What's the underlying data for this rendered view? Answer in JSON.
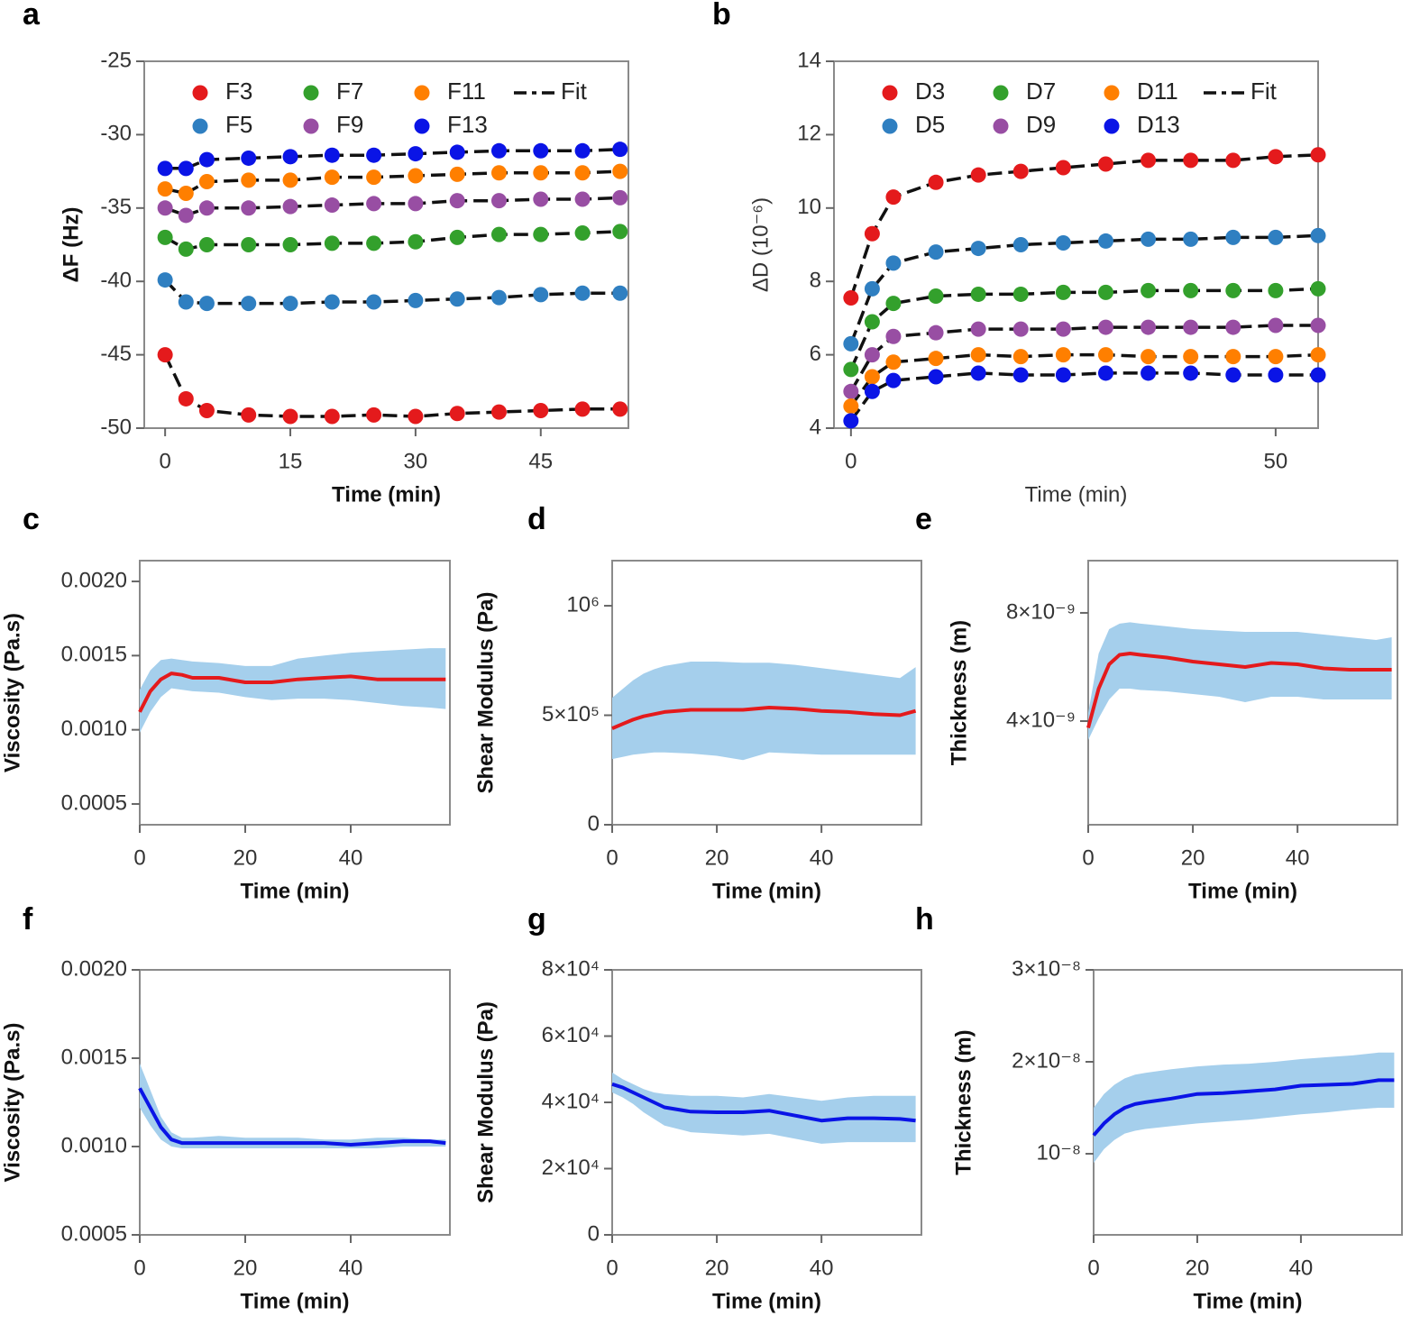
{
  "chart_data": [
    {
      "type": "scatter",
      "panel": "a",
      "xlabel": "Time (min)",
      "ylabel": "ΔF (Hz)",
      "x": [
        0,
        2.5,
        5,
        10,
        15,
        20,
        25,
        30,
        35,
        40,
        45,
        50,
        54.5
      ],
      "xlim": [
        -2.5,
        55.5
      ],
      "xticks": [
        0,
        15,
        30,
        45
      ],
      "ylim": [
        -50,
        -25
      ],
      "yticks": [
        -25,
        -30,
        -35,
        -40,
        -45,
        -50
      ],
      "fit": true,
      "fit_label": "Fit",
      "series": [
        {
          "name": "F3",
          "color": "#e41a1c",
          "values": [
            -45,
            -48,
            -48.8,
            -49.1,
            -49.2,
            -49.2,
            -49.1,
            -49.2,
            -49,
            -48.9,
            -48.8,
            -48.7,
            -48.7
          ]
        },
        {
          "name": "F5",
          "color": "#2f7fc1",
          "values": [
            -39.9,
            -41.4,
            -41.5,
            -41.5,
            -41.5,
            -41.4,
            -41.4,
            -41.3,
            -41.2,
            -41.1,
            -40.9,
            -40.8,
            -40.8
          ]
        },
        {
          "name": "F7",
          "color": "#33a02c",
          "values": [
            -37,
            -37.8,
            -37.5,
            -37.5,
            -37.5,
            -37.4,
            -37.4,
            -37.3,
            -37,
            -36.8,
            -36.8,
            -36.7,
            -36.6
          ]
        },
        {
          "name": "F9",
          "color": "#984ea3",
          "values": [
            -35,
            -35.5,
            -35,
            -35,
            -34.9,
            -34.8,
            -34.7,
            -34.7,
            -34.5,
            -34.5,
            -34.4,
            -34.4,
            -34.3
          ]
        },
        {
          "name": "F11",
          "color": "#ff7f00",
          "values": [
            -33.7,
            -34,
            -33.2,
            -33.1,
            -33.1,
            -32.9,
            -32.9,
            -32.8,
            -32.7,
            -32.6,
            -32.6,
            -32.6,
            -32.5
          ]
        },
        {
          "name": "F13",
          "color": "#0a14e6",
          "values": [
            -32.3,
            -32.3,
            -31.7,
            -31.6,
            -31.5,
            -31.4,
            -31.4,
            -31.3,
            -31.2,
            -31.1,
            -31.1,
            -31.1,
            -31
          ]
        }
      ]
    },
    {
      "type": "scatter",
      "panel": "b",
      "xlabel": "Time (min)",
      "ylabel": "ΔD (10⁻⁶)",
      "x": [
        0,
        2.5,
        5,
        10,
        15,
        20,
        25,
        30,
        35,
        40,
        45,
        50,
        55
      ],
      "xlim": [
        -2,
        55
      ],
      "xticks": [
        0,
        50
      ],
      "ylim": [
        4,
        14
      ],
      "yticks": [
        4,
        6,
        8,
        10,
        12,
        14
      ],
      "fit": true,
      "fit_label": "Fit",
      "series": [
        {
          "name": "D3",
          "color": "#e41a1c",
          "values": [
            7.55,
            9.3,
            10.3,
            10.7,
            10.9,
            11,
            11.1,
            11.2,
            11.3,
            11.3,
            11.3,
            11.4,
            11.45
          ]
        },
        {
          "name": "D5",
          "color": "#2f7fc1",
          "values": [
            6.3,
            7.8,
            8.5,
            8.8,
            8.9,
            9,
            9.05,
            9.1,
            9.15,
            9.15,
            9.2,
            9.2,
            9.25
          ]
        },
        {
          "name": "D7",
          "color": "#33a02c",
          "values": [
            5.6,
            6.9,
            7.4,
            7.6,
            7.65,
            7.65,
            7.7,
            7.7,
            7.75,
            7.75,
            7.75,
            7.75,
            7.8
          ]
        },
        {
          "name": "D9",
          "color": "#984ea3",
          "values": [
            5,
            6,
            6.5,
            6.6,
            6.7,
            6.7,
            6.7,
            6.75,
            6.75,
            6.75,
            6.75,
            6.8,
            6.8
          ]
        },
        {
          "name": "D11",
          "color": "#ff7f00",
          "values": [
            4.6,
            5.4,
            5.8,
            5.9,
            6,
            5.95,
            6,
            6,
            5.95,
            5.95,
            5.95,
            5.95,
            6
          ]
        },
        {
          "name": "D13",
          "color": "#0a14e6",
          "values": [
            4.2,
            5,
            5.3,
            5.4,
            5.5,
            5.45,
            5.45,
            5.5,
            5.5,
            5.5,
            5.45,
            5.45,
            5.45
          ]
        }
      ]
    },
    {
      "type": "line",
      "panel": "c",
      "xlabel": "Time (min)",
      "ylabel": "Viscosity (Pa.s)",
      "x": [
        0,
        2,
        4,
        6,
        8,
        10,
        15,
        20,
        25,
        30,
        35,
        40,
        45,
        50,
        55,
        58
      ],
      "xlim": [
        0,
        58.8
      ],
      "xticks": [
        0,
        20,
        40
      ],
      "ylim": [
        0.00036,
        0.00214
      ],
      "yticks": [
        {
          "value": 0.002,
          "label": "0.0020"
        },
        0.0015,
        {
          "value": 0.001,
          "label": "0.0010"
        },
        0.0005
      ],
      "series": [
        {
          "color": "#e41a1c",
          "values": [
            0.00112,
            0.00126,
            0.00134,
            0.00138,
            0.00137,
            0.00135,
            0.00135,
            0.00132,
            0.00132,
            0.00134,
            0.00135,
            0.00136,
            0.00134,
            0.00134,
            0.00134,
            0.00134
          ],
          "band": {
            "color": "#a5cfec",
            "upper": [
              0.00127,
              0.0014,
              0.00147,
              0.00148,
              0.00147,
              0.00146,
              0.00145,
              0.00143,
              0.00143,
              0.00148,
              0.0015,
              0.00152,
              0.00153,
              0.00154,
              0.00155,
              0.00155
            ],
            "lower": [
              0.00098,
              0.00112,
              0.00122,
              0.00128,
              0.00127,
              0.00126,
              0.00125,
              0.00122,
              0.0012,
              0.00121,
              0.00121,
              0.0012,
              0.00118,
              0.00116,
              0.00115,
              0.00114
            ]
          }
        }
      ]
    },
    {
      "type": "line",
      "panel": "d",
      "xlabel": "Time (min)",
      "ylabel": "Shear Modulus (Pa)",
      "x": [
        0,
        2,
        4,
        6,
        8,
        10,
        15,
        20,
        25,
        30,
        35,
        40,
        45,
        50,
        55,
        58
      ],
      "xlim": [
        0,
        59.1
      ],
      "xticks": [
        0,
        20,
        40
      ],
      "ylim": [
        0,
        1206000
      ],
      "yticks": [
        0,
        {
          "value": 500000,
          "label": "5×10⁵"
        },
        {
          "value": 1000000,
          "label": "10⁶"
        }
      ],
      "series": [
        {
          "color": "#e41a1c",
          "values": [
            440000,
            460000,
            480000,
            495000,
            505000,
            515000,
            525000,
            525000,
            525000,
            535000,
            530000,
            520000,
            515000,
            505000,
            500000,
            520000
          ],
          "band": {
            "color": "#a5cfec",
            "upper": [
              580000,
              620000,
              660000,
              690000,
              710000,
              725000,
              745000,
              745000,
              740000,
              740000,
              730000,
              715000,
              700000,
              685000,
              670000,
              720000
            ],
            "lower": [
              300000,
              310000,
              320000,
              325000,
              330000,
              330000,
              325000,
              315000,
              295000,
              330000,
              325000,
              320000,
              320000,
              320000,
              320000,
              320000
            ]
          }
        }
      ]
    },
    {
      "type": "line",
      "panel": "e",
      "xlabel": "Time (min)",
      "ylabel": "Thickness (m)",
      "x": [
        0,
        2,
        4,
        6,
        8,
        10,
        15,
        20,
        25,
        30,
        35,
        40,
        45,
        50,
        55,
        58
      ],
      "xlim": [
        0,
        59.1
      ],
      "xticks": [
        0,
        20,
        40
      ],
      "ylim": [
        1.7e-10,
        9.93e-09
      ],
      "yticks": [
        {
          "value": 4e-09,
          "label": "4×10⁻⁹"
        },
        {
          "value": 8e-09,
          "label": "8×10⁻⁹"
        }
      ],
      "series": [
        {
          "color": "#e41a1c",
          "values": [
            3.75e-09,
            5.2e-09,
            6.1e-09,
            6.45e-09,
            6.5e-09,
            6.45e-09,
            6.35e-09,
            6.2e-09,
            6.1e-09,
            6e-09,
            6.15e-09,
            6.1e-09,
            5.95e-09,
            5.9e-09,
            5.9e-09,
            5.9e-09
          ],
          "band": {
            "color": "#a5cfec",
            "upper": [
              4.3e-09,
              6.5e-09,
              7.4e-09,
              7.6e-09,
              7.65e-09,
              7.6e-09,
              7.5e-09,
              7.4e-09,
              7.35e-09,
              7.3e-09,
              7.3e-09,
              7.3e-09,
              7.2e-09,
              7.1e-09,
              7e-09,
              7.1e-09
            ],
            "lower": [
              3.3e-09,
              4.1e-09,
              4.8e-09,
              5.2e-09,
              5.2e-09,
              5.15e-09,
              5.1e-09,
              5e-09,
              4.9e-09,
              4.7e-09,
              4.9e-09,
              4.9e-09,
              4.8e-09,
              4.8e-09,
              4.8e-09,
              4.8e-09
            ]
          }
        }
      ]
    },
    {
      "type": "line",
      "panel": "f",
      "xlabel": "Time (min)",
      "ylabel": "Viscosity (Pa.s)",
      "x": [
        0,
        2,
        4,
        6,
        8,
        10,
        15,
        20,
        25,
        30,
        35,
        40,
        45,
        50,
        55,
        58
      ],
      "xlim": [
        0,
        58.8
      ],
      "xticks": [
        0,
        20,
        40
      ],
      "ylim": [
        0.0005,
        0.002
      ],
      "yticks": [
        {
          "value": 0.002,
          "label": "0.0020"
        },
        0.0015,
        {
          "value": 0.001,
          "label": "0.0010"
        },
        0.0005
      ],
      "series": [
        {
          "color": "#0a14e6",
          "values": [
            0.00133,
            0.00122,
            0.00111,
            0.00104,
            0.00102,
            0.00102,
            0.00102,
            0.00102,
            0.00102,
            0.00102,
            0.00102,
            0.00101,
            0.00102,
            0.00103,
            0.00103,
            0.00102
          ],
          "band": {
            "color": "#a5cfec",
            "upper": [
              0.00147,
              0.00132,
              0.00117,
              0.00108,
              0.00105,
              0.00105,
              0.00106,
              0.00105,
              0.00105,
              0.00105,
              0.00104,
              0.00104,
              0.00105,
              0.00105,
              0.00104,
              0.00104
            ],
            "lower": [
              0.00122,
              0.00112,
              0.00104,
              0.001,
              0.00099,
              0.00099,
              0.00099,
              0.00099,
              0.00099,
              0.00099,
              0.00099,
              0.00099,
              0.00099,
              0.001,
              0.001,
              0.001
            ]
          }
        }
      ]
    },
    {
      "type": "line",
      "panel": "g",
      "xlabel": "Time (min)",
      "ylabel": "Shear Modulus (Pa)",
      "x": [
        0,
        2,
        4,
        6,
        8,
        10,
        15,
        20,
        25,
        30,
        35,
        40,
        45,
        50,
        55,
        58
      ],
      "xlim": [
        0,
        59.1
      ],
      "xticks": [
        0,
        20,
        40
      ],
      "ylim": [
        0,
        80000
      ],
      "yticks": [
        0,
        {
          "value": 20000,
          "label": "2×10⁴"
        },
        {
          "value": 40000,
          "label": "4×10⁴"
        },
        {
          "value": 60000,
          "label": "6×10⁴"
        },
        {
          "value": 80000,
          "label": "8×10⁴"
        }
      ],
      "series": [
        {
          "color": "#0a14e6",
          "values": [
            45500,
            44500,
            43000,
            41500,
            40000,
            38500,
            37200,
            37000,
            37000,
            37500,
            36000,
            34500,
            35200,
            35200,
            35000,
            34500
          ],
          "band": {
            "color": "#a5cfec",
            "upper": [
              49000,
              47000,
              45500,
              44000,
              43000,
              42500,
              42000,
              42000,
              41500,
              42500,
              41500,
              40500,
              41500,
              42000,
              42000,
              42000
            ],
            "lower": [
              43000,
              41500,
              39500,
              37000,
              35000,
              33000,
              31000,
              30500,
              30000,
              30500,
              29000,
              27500,
              28000,
              28000,
              28000,
              28000
            ]
          }
        }
      ]
    },
    {
      "type": "line",
      "panel": "h",
      "xlabel": "Time (min)",
      "ylabel": "Thickness (m)",
      "x": [
        0,
        2,
        4,
        6,
        8,
        10,
        15,
        20,
        25,
        30,
        35,
        40,
        45,
        50,
        55,
        58
      ],
      "xlim": [
        0,
        59.5
      ],
      "xticks": [
        0,
        20,
        40
      ],
      "ylim": [
        1.18e-09,
        3e-08
      ],
      "yticks": [
        {
          "value": 3e-08,
          "label": "3×10⁻⁸"
        },
        {
          "value": 2e-08,
          "label": "2×10⁻⁸"
        },
        {
          "value": 1e-08,
          "label": "10⁻⁸"
        }
      ],
      "series": [
        {
          "color": "#0a14e6",
          "values": [
            1.2e-08,
            1.33e-08,
            1.43e-08,
            1.5e-08,
            1.54e-08,
            1.56e-08,
            1.6e-08,
            1.65e-08,
            1.66e-08,
            1.68e-08,
            1.7e-08,
            1.74e-08,
            1.75e-08,
            1.76e-08,
            1.8e-08,
            1.8e-08
          ],
          "band": {
            "color": "#a5cfec",
            "upper": [
              1.5e-08,
              1.65e-08,
              1.75e-08,
              1.82e-08,
              1.86e-08,
              1.88e-08,
              1.92e-08,
              1.95e-08,
              1.97e-08,
              1.98e-08,
              2e-08,
              2.03e-08,
              2.05e-08,
              2.07e-08,
              2.1e-08,
              2.1e-08
            ],
            "lower": [
              9e-09,
              1.05e-08,
              1.15e-08,
              1.22e-08,
              1.25e-08,
              1.27e-08,
              1.3e-08,
              1.33e-08,
              1.35e-08,
              1.37e-08,
              1.4e-08,
              1.43e-08,
              1.45e-08,
              1.48e-08,
              1.5e-08,
              1.5e-08
            ]
          }
        }
      ]
    }
  ]
}
